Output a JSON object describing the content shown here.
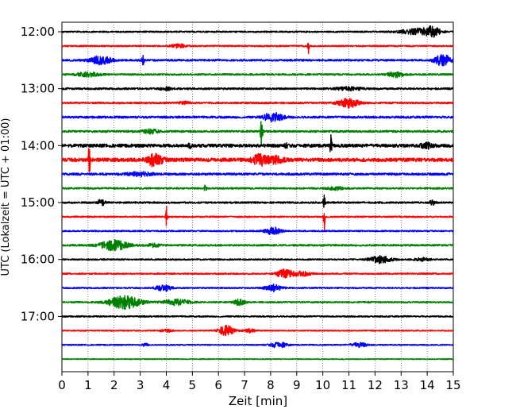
{
  "chart_data": {
    "type": "line",
    "title": "",
    "xlabel": "Zeit  [min]",
    "ylabel": "UTC (Lokalzeit = UTC + 01:00)",
    "xlim": [
      0,
      15
    ],
    "x_ticks": [
      "0",
      "1",
      "2",
      "3",
      "4",
      "5",
      "6",
      "7",
      "8",
      "9",
      "10",
      "11",
      "12",
      "13",
      "14",
      "15"
    ],
    "y_tick_labels": [
      "12:00",
      "13:00",
      "14:00",
      "15:00",
      "16:00",
      "17:00"
    ],
    "grid": "vertical dotted at each minute",
    "trace_colors": [
      "#000000",
      "#ff0000",
      "#0000ff",
      "#008000"
    ],
    "traces": [
      {
        "start": "12:00",
        "color": "#000000",
        "noise": 1.0,
        "events": [
          {
            "t": 13.6,
            "amp": 4,
            "width": 0.6
          },
          {
            "t": 14.2,
            "amp": 6,
            "width": 0.3
          }
        ]
      },
      {
        "start": "12:15",
        "color": "#ff0000",
        "noise": 1.0,
        "events": [
          {
            "t": 9.45,
            "amp": 10,
            "width": 0.03
          },
          {
            "t": 4.5,
            "amp": 2.5,
            "width": 0.3
          }
        ]
      },
      {
        "start": "12:30",
        "color": "#0000ff",
        "noise": 1.3,
        "events": [
          {
            "t": 1.5,
            "amp": 6,
            "width": 0.4
          },
          {
            "t": 3.1,
            "amp": 8,
            "width": 0.05
          },
          {
            "t": 14.6,
            "amp": 8,
            "width": 0.3
          }
        ]
      },
      {
        "start": "12:45",
        "color": "#008000",
        "noise": 1.2,
        "events": [
          {
            "t": 1.0,
            "amp": 3,
            "width": 0.4
          },
          {
            "t": 12.8,
            "amp": 3.5,
            "width": 0.3
          }
        ]
      },
      {
        "start": "13:00",
        "color": "#000000",
        "noise": 1.3,
        "events": [
          {
            "t": 4.0,
            "amp": 2.5,
            "width": 0.2
          },
          {
            "t": 11.0,
            "amp": 2,
            "width": 0.5
          }
        ]
      },
      {
        "start": "13:15",
        "color": "#ff0000",
        "noise": 1.2,
        "events": [
          {
            "t": 11.0,
            "amp": 6,
            "width": 0.4
          },
          {
            "t": 4.7,
            "amp": 2,
            "width": 0.2
          }
        ]
      },
      {
        "start": "13:30",
        "color": "#0000ff",
        "noise": 1.5,
        "events": [
          {
            "t": 8.2,
            "amp": 5,
            "width": 0.3
          },
          {
            "t": 7.9,
            "amp": 3,
            "width": 0.2
          }
        ]
      },
      {
        "start": "13:45",
        "color": "#008000",
        "noise": 1.4,
        "events": [
          {
            "t": 7.65,
            "amp": 21,
            "width": 0.04
          },
          {
            "t": 3.4,
            "amp": 2.5,
            "width": 0.3
          }
        ]
      },
      {
        "start": "14:00",
        "color": "#000000",
        "noise": 2.2,
        "events": [
          {
            "t": 10.3,
            "amp": 14,
            "width": 0.04
          },
          {
            "t": 14.0,
            "amp": 4,
            "width": 0.2
          },
          {
            "t": 8.6,
            "amp": 3,
            "width": 0.05
          },
          {
            "t": 4.9,
            "amp": 3,
            "width": 0.05
          }
        ]
      },
      {
        "start": "14:15",
        "color": "#ff0000",
        "noise": 2.5,
        "events": [
          {
            "t": 1.05,
            "amp": 28,
            "width": 0.03
          },
          {
            "t": 3.55,
            "amp": 8,
            "width": 0.3
          },
          {
            "t": 7.6,
            "amp": 7,
            "width": 0.3
          },
          {
            "t": 8.2,
            "amp": 4,
            "width": 0.3
          }
        ]
      },
      {
        "start": "14:30",
        "color": "#0000ff",
        "noise": 1.5,
        "events": [
          {
            "t": 3.0,
            "amp": 2.5,
            "width": 0.5
          }
        ]
      },
      {
        "start": "14:45",
        "color": "#008000",
        "noise": 1.2,
        "events": [
          {
            "t": 5.5,
            "amp": 4,
            "width": 0.05
          },
          {
            "t": 10.5,
            "amp": 2,
            "width": 0.3
          }
        ]
      },
      {
        "start": "15:00",
        "color": "#000000",
        "noise": 1.2,
        "events": [
          {
            "t": 1.5,
            "amp": 4,
            "width": 0.15
          },
          {
            "t": 10.05,
            "amp": 10,
            "width": 0.04
          },
          {
            "t": 14.2,
            "amp": 3,
            "width": 0.1
          }
        ]
      },
      {
        "start": "15:15",
        "color": "#ff0000",
        "noise": 1.0,
        "events": [
          {
            "t": 4.0,
            "amp": 16,
            "width": 0.03
          },
          {
            "t": 10.05,
            "amp": 20,
            "width": 0.03
          }
        ]
      },
      {
        "start": "15:30",
        "color": "#0000ff",
        "noise": 1.0,
        "events": [
          {
            "t": 8.1,
            "amp": 5,
            "width": 0.3
          }
        ]
      },
      {
        "start": "15:45",
        "color": "#008000",
        "noise": 1.2,
        "events": [
          {
            "t": 2.0,
            "amp": 7,
            "width": 0.5
          },
          {
            "t": 3.5,
            "amp": 2,
            "width": 0.3
          }
        ]
      },
      {
        "start": "16:00",
        "color": "#000000",
        "noise": 1.0,
        "events": [
          {
            "t": 12.2,
            "amp": 5,
            "width": 0.4
          },
          {
            "t": 13.8,
            "amp": 2,
            "width": 0.3
          }
        ]
      },
      {
        "start": "16:15",
        "color": "#ff0000",
        "noise": 1.0,
        "events": [
          {
            "t": 8.55,
            "amp": 6,
            "width": 0.3
          },
          {
            "t": 9.2,
            "amp": 3,
            "width": 0.3
          }
        ]
      },
      {
        "start": "16:30",
        "color": "#0000ff",
        "noise": 1.0,
        "events": [
          {
            "t": 3.9,
            "amp": 4,
            "width": 0.3
          },
          {
            "t": 8.1,
            "amp": 5,
            "width": 0.3
          }
        ]
      },
      {
        "start": "16:45",
        "color": "#008000",
        "noise": 1.0,
        "events": [
          {
            "t": 2.4,
            "amp": 9,
            "width": 0.6
          },
          {
            "t": 4.4,
            "amp": 4,
            "width": 0.5
          },
          {
            "t": 6.8,
            "amp": 4,
            "width": 0.2
          }
        ]
      },
      {
        "start": "17:00",
        "color": "#000000",
        "noise": 1.0,
        "events": []
      },
      {
        "start": "17:15",
        "color": "#ff0000",
        "noise": 0.8,
        "events": [
          {
            "t": 6.3,
            "amp": 7,
            "width": 0.3
          },
          {
            "t": 7.2,
            "amp": 2.5,
            "width": 0.2
          },
          {
            "t": 4.0,
            "amp": 2,
            "width": 0.2
          }
        ]
      },
      {
        "start": "17:30",
        "color": "#0000ff",
        "noise": 0.8,
        "events": [
          {
            "t": 8.3,
            "amp": 4,
            "width": 0.3
          },
          {
            "t": 11.4,
            "amp": 3,
            "width": 0.3
          },
          {
            "t": 3.2,
            "amp": 2,
            "width": 0.1
          }
        ]
      },
      {
        "start": "17:45",
        "color": "#008000",
        "noise": 0.6,
        "events": []
      }
    ]
  }
}
